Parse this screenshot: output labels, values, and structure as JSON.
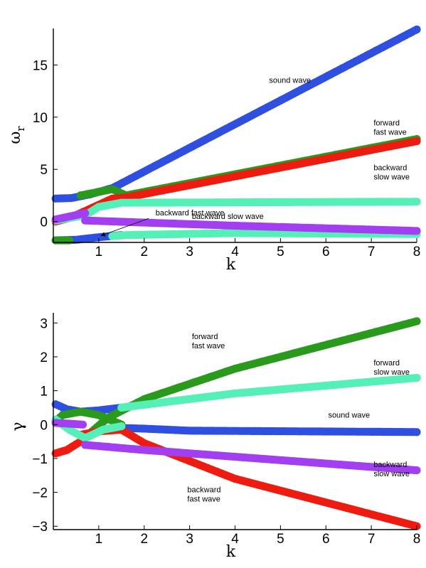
{
  "chart_data": [
    {
      "type": "scatter",
      "xlabel": "k",
      "ylabel": "ω",
      "ylabel_sub": "r",
      "xlim": [
        0,
        8
      ],
      "ylim": [
        -2,
        18.5
      ],
      "xticks": [
        "1",
        "2",
        "3",
        "4",
        "5",
        "6",
        "7",
        "8"
      ],
      "xtick_values": [
        1,
        2,
        3,
        4,
        5,
        6,
        7,
        8
      ],
      "yticks": [
        "0",
        "5",
        "10",
        "15"
      ],
      "ytick_values": [
        0,
        5,
        10,
        15
      ],
      "series": [
        {
          "color": "#2f4fe0",
          "x": [
            0.05,
            0.4,
            0.8,
            1.3,
            8
          ],
          "y": [
            2.2,
            2.25,
            2.6,
            3.2,
            18.4
          ]
        },
        {
          "color": "#2f4fe0",
          "x": [
            0.05,
            0.5,
            1.0,
            1.5
          ],
          "y": [
            -1.8,
            -1.75,
            -1.5,
            -1.3
          ]
        },
        {
          "color": "#2a9a1c",
          "x": [
            0.05,
            0.35
          ],
          "y": [
            -1.8,
            -1.8
          ]
        },
        {
          "color": "#2a9a1c",
          "x": [
            0.6,
            1.3,
            1.6,
            8
          ],
          "y": [
            2.5,
            3.1,
            2.5,
            7.9
          ]
        },
        {
          "color": "#ee1c10",
          "x": [
            0.05,
            0.4,
            0.7,
            1.3,
            1.6,
            8
          ],
          "y": [
            0,
            0.4,
            1.0,
            2.2,
            2.3,
            7.7
          ]
        },
        {
          "color": "#55f0b8",
          "x": [
            0.05,
            0.7,
            1.0,
            1.5,
            8
          ],
          "y": [
            0.1,
            0.6,
            1.4,
            1.8,
            1.9
          ]
        },
        {
          "color": "#55f0b8",
          "x": [
            1.3,
            1.6,
            4,
            8
          ],
          "y": [
            -1.4,
            -1.3,
            -1.1,
            -1.2
          ]
        },
        {
          "color": "#a23ff0",
          "x": [
            0.05,
            0.7
          ],
          "y": [
            0.2,
            0.8
          ]
        },
        {
          "color": "#a23ff0",
          "x": [
            0.7,
            2,
            4,
            8
          ],
          "y": [
            0.1,
            -0.1,
            -0.4,
            -0.9
          ]
        }
      ],
      "annotations": [
        {
          "lines": [
            "sound wave"
          ],
          "x": 4.75,
          "y": 13.3
        },
        {
          "lines": [
            "forward",
            "fast wave"
          ],
          "x": 7.05,
          "y": 9.2
        },
        {
          "lines": [
            "backward",
            "slow wave"
          ],
          "x": 7.05,
          "y": 4.9
        },
        {
          "lines": [
            "backward fast wave"
          ],
          "x": 2.25,
          "y": 0.6
        },
        {
          "lines": [
            "backward slow wave"
          ],
          "x": 3.05,
          "y": 0.25
        }
      ],
      "arrow": {
        "from": [
          2.1,
          0.3
        ],
        "to": [
          1.05,
          -1.35
        ]
      }
    },
    {
      "type": "scatter",
      "xlabel": "k",
      "ylabel": "γ",
      "xlim": [
        0,
        8
      ],
      "ylim": [
        -3.1,
        3.3
      ],
      "xticks": [
        "1",
        "2",
        "3",
        "4",
        "5",
        "6",
        "7",
        "8"
      ],
      "xtick_values": [
        1,
        2,
        3,
        4,
        5,
        6,
        7,
        8
      ],
      "yticks": [
        "3",
        "2",
        "1",
        "0",
        "−1",
        "−2",
        "−3"
      ],
      "ytick_values": [
        3,
        2,
        1,
        0,
        -1,
        -2,
        -3
      ],
      "series": [
        {
          "color": "#2f4fe0",
          "x": [
            0.05,
            0.3,
            0.6,
            1.0,
            1.5
          ],
          "y": [
            0.6,
            0.45,
            0.38,
            0.42,
            0.5
          ]
        },
        {
          "color": "#2f4fe0",
          "x": [
            1.5,
            2,
            3,
            8
          ],
          "y": [
            -0.1,
            -0.12,
            -0.18,
            -0.22
          ]
        },
        {
          "color": "#2a9a1c",
          "x": [
            0.05,
            0.2,
            0.6,
            1.0,
            1.5
          ],
          "y": [
            0.1,
            0.28,
            0.38,
            0.28,
            0.0
          ]
        },
        {
          "color": "#2a9a1c",
          "x": [
            0.85,
            1.2,
            2,
            4,
            8
          ],
          "y": [
            -0.2,
            0.2,
            0.75,
            1.65,
            3.05
          ]
        },
        {
          "color": "#ee1c10",
          "x": [
            0.05,
            0.3,
            0.6
          ],
          "y": [
            -0.85,
            -0.75,
            -0.5
          ]
        },
        {
          "color": "#ee1c10",
          "x": [
            0.6,
            1.0,
            1.5,
            2,
            4,
            8
          ],
          "y": [
            -0.3,
            -0.2,
            -0.15,
            -0.55,
            -1.6,
            -3.0
          ]
        },
        {
          "color": "#55f0b8",
          "x": [
            0.05,
            0.35,
            0.7
          ],
          "y": [
            0.15,
            -0.15,
            -0.4
          ]
        },
        {
          "color": "#55f0b8",
          "x": [
            0.7,
            1.1,
            1.5
          ],
          "y": [
            -0.4,
            -0.15,
            -0.05
          ]
        },
        {
          "color": "#55f0b8",
          "x": [
            1.5,
            2.5,
            4,
            8
          ],
          "y": [
            0.5,
            0.67,
            0.92,
            1.38
          ]
        },
        {
          "color": "#a23ff0",
          "x": [
            0.05,
            0.3,
            0.65
          ],
          "y": [
            0.05,
            0.03,
            0.0
          ]
        },
        {
          "color": "#a23ff0",
          "x": [
            0.7,
            2,
            4,
            8
          ],
          "y": [
            -0.6,
            -0.75,
            -0.95,
            -1.35
          ]
        }
      ],
      "annotations": [
        {
          "lines": [
            "forward",
            "fast wave"
          ],
          "x": 3.05,
          "y": 2.52
        },
        {
          "lines": [
            "forward",
            "slow wave"
          ],
          "x": 7.05,
          "y": 1.75
        },
        {
          "lines": [
            "sound wave"
          ],
          "x": 6.05,
          "y": 0.2
        },
        {
          "lines": [
            "backward",
            "slow wave"
          ],
          "x": 7.05,
          "y": -1.25
        },
        {
          "lines": [
            "backward",
            "fast wave"
          ],
          "x": 2.95,
          "y": -2.0
        }
      ]
    }
  ]
}
